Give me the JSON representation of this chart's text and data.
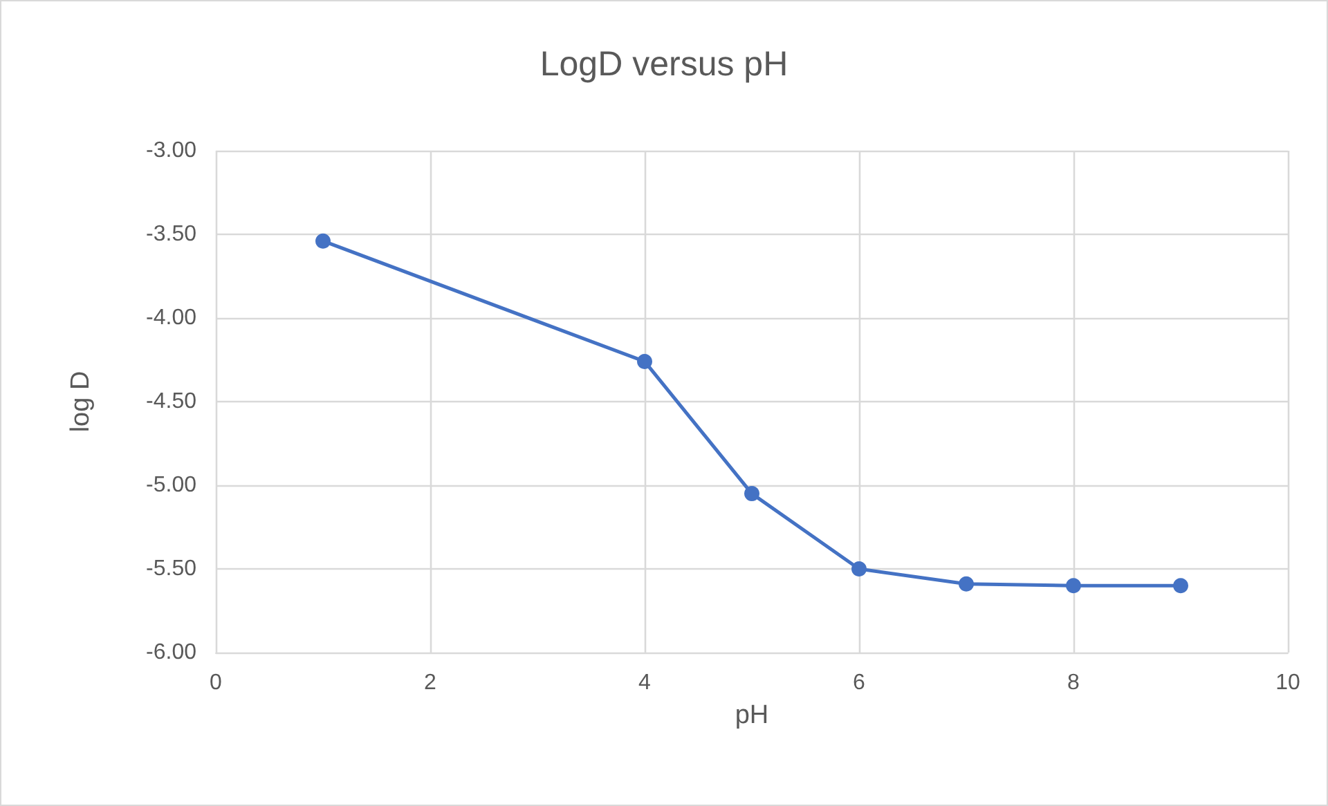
{
  "chart_data": {
    "type": "line",
    "title": "LogD versus pH",
    "xlabel": "pH",
    "ylabel": "log D",
    "x": [
      1,
      4,
      5,
      6,
      7,
      8,
      9
    ],
    "series": [
      {
        "color": "#4472c4",
        "values": [
          -3.54,
          -4.26,
          -5.05,
          -5.5,
          -5.59,
          -5.6,
          -5.6
        ]
      }
    ],
    "xlim": [
      0,
      10
    ],
    "xticks": [
      0,
      2,
      4,
      6,
      8,
      10
    ],
    "ylim": [
      -6,
      -3
    ],
    "yticks": [
      {
        "value": -6,
        "label": "-6.00"
      },
      {
        "value": -5.5,
        "label": "-5.50"
      },
      {
        "value": -5,
        "label": "-5.00"
      },
      {
        "value": -4.5,
        "label": "-4.50"
      },
      {
        "value": -4,
        "label": "-4.00"
      },
      {
        "value": -3.5,
        "label": "-3.50"
      },
      {
        "value": -3,
        "label": "-3.00"
      }
    ],
    "grid": true,
    "marker": "circle",
    "line_style": "solid"
  }
}
